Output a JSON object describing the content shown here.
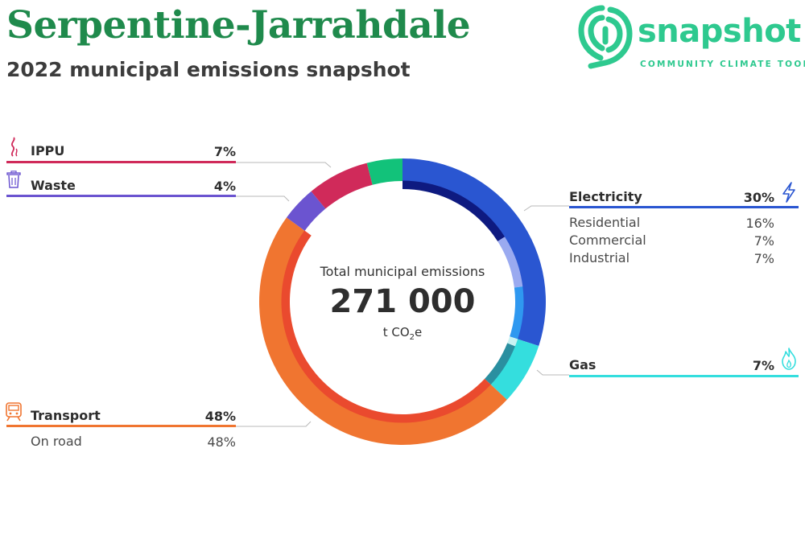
{
  "header": {
    "title": "Serpentine-Jarrahdale",
    "subtitle": "2022 municipal emissions snapshot"
  },
  "logo": {
    "word": "snapshot",
    "tagline": "COMMUNITY CLIMATE TOOL",
    "color": "#2ec98f"
  },
  "center": {
    "title": "Total municipal emissions",
    "value": "271 000",
    "unit_prefix": "t CO",
    "unit_sub": "2",
    "unit_suffix": "e"
  },
  "chart_data": {
    "type": "pie",
    "variant": "donut-with-inner-subsector-ring",
    "unit": "%",
    "categories": [
      {
        "name": "Electricity",
        "value": 30,
        "value_label": "30%",
        "color": "#2a56d1",
        "icon": "lightning-icon",
        "subsectors": [
          {
            "name": "Residential",
            "value": 16,
            "value_label": "16%",
            "color": "#0e1a80"
          },
          {
            "name": "Commercial",
            "value": 7,
            "value_label": "7%",
            "color": "#9aaaf0"
          },
          {
            "name": "Industrial",
            "value": 7,
            "value_label": "7%",
            "color": "#2f98f0"
          }
        ]
      },
      {
        "name": "Gas",
        "value": 7,
        "value_label": "7%",
        "color": "#34dede",
        "icon": "flame-icon",
        "subsectors": [
          {
            "name": "",
            "value": 1,
            "color": "#c8f3f3"
          },
          {
            "name": "",
            "value": 6,
            "color": "#2a8fa0"
          }
        ]
      },
      {
        "name": "Transport",
        "value": 48,
        "value_label": "48%",
        "color": "#f07530",
        "icon": "train-icon",
        "subsectors": [
          {
            "name": "On road",
            "value": 48,
            "value_label": "48%",
            "color": "#ea4a2e"
          }
        ]
      },
      {
        "name": "Waste",
        "value": 4,
        "value_label": "4%",
        "color": "#6b54d0",
        "icon": "trash-can-icon",
        "subsectors": []
      },
      {
        "name": "IPPU",
        "value": 7,
        "value_label": "7%",
        "color": "#d02a5a",
        "icon": "smoke-icon",
        "subsectors": []
      },
      {
        "name": "",
        "value": 4,
        "color": "#12c27a",
        "subsectors": []
      }
    ]
  }
}
